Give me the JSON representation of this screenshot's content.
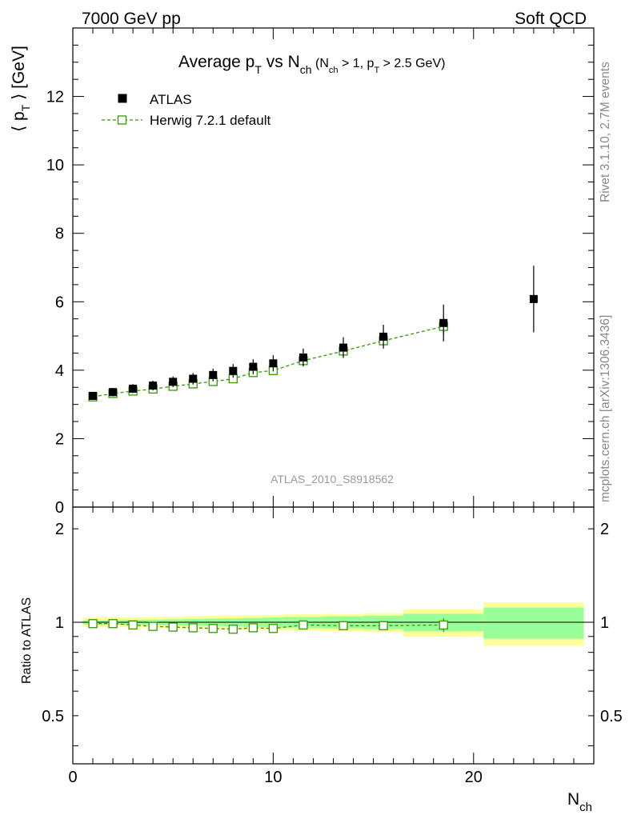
{
  "chart_data": {
    "type": "scatter",
    "top_left_label": "7000 GeV pp",
    "top_right_label": "Soft QCD",
    "title": {
      "prefix": "Average p",
      "sub1": "T",
      "mid": " vs N",
      "sub2": "ch",
      "cuts_open": " (N",
      "cuts_sub1": "ch",
      "cuts_mid": " > 1, p",
      "cuts_sub2": "T",
      "cuts_close": " > 2.5 GeV)"
    },
    "ylabel": {
      "open": "⟨ p",
      "sub": "T",
      "close": " ⟩  [GeV]"
    },
    "xlabel": {
      "main": "N",
      "sub": "ch"
    },
    "ratio_ylabel": "Ratio to ATLAS",
    "analysis_tag": "ATLAS_2010_S8918562",
    "side_label_rivet": "Rivet 3.1.10,  2.7M events",
    "side_label_mcplots": "mcplots.cern.ch [arXiv:1306.3436]",
    "xlim": [
      0,
      26
    ],
    "ylim": [
      0,
      14
    ],
    "ratio_ylim": [
      0.35,
      2.35
    ],
    "x_ticks": [
      "0",
      "10",
      "20"
    ],
    "y_ticks": [
      "0",
      "2",
      "4",
      "6",
      "8",
      "10",
      "12"
    ],
    "ratio_ticks": [
      "0.5",
      "1",
      "2"
    ],
    "colors": {
      "mc": "#339900",
      "band_inner": "#99ff99",
      "band_outer": "#ffff99"
    },
    "legend": [
      {
        "name": "ATLAS",
        "marker": "filled-square"
      },
      {
        "name": "Herwig 7.2.1 default",
        "marker": "open-square-dashed"
      }
    ],
    "series": [
      {
        "name": "ATLAS",
        "x": [
          1,
          2,
          3,
          4,
          5,
          6,
          7,
          8,
          9,
          10,
          11.5,
          13.5,
          15.5,
          18.5,
          23
        ],
        "xlow": [
          0.5,
          1.5,
          2.5,
          3.5,
          4.5,
          5.5,
          6.5,
          7.5,
          8.5,
          9.5,
          10.5,
          12.5,
          14.5,
          16.5,
          20.5
        ],
        "xhigh": [
          1.5,
          2.5,
          3.5,
          4.5,
          5.5,
          6.5,
          7.5,
          8.5,
          9.5,
          10.5,
          12.5,
          14.5,
          16.5,
          20.5,
          25.5
        ],
        "y": [
          3.25,
          3.36,
          3.46,
          3.55,
          3.66,
          3.75,
          3.86,
          3.98,
          4.1,
          4.2,
          4.37,
          4.66,
          4.98,
          5.38,
          6.08
        ],
        "rel_err_stat": [
          0.015,
          0.016,
          0.018,
          0.02,
          0.022,
          0.025,
          0.028,
          0.03,
          0.033,
          0.036,
          0.04,
          0.045,
          0.05,
          0.065,
          0.115
        ],
        "rel_err_total": [
          0.035,
          0.036,
          0.038,
          0.04,
          0.043,
          0.045,
          0.048,
          0.05,
          0.053,
          0.056,
          0.06,
          0.065,
          0.07,
          0.1,
          0.16
        ]
      },
      {
        "name": "Herwig 7.2.1 default",
        "x": [
          1,
          2,
          3,
          4,
          5,
          6,
          7,
          8,
          9,
          10,
          11.5,
          13.5,
          15.5,
          18.5
        ],
        "y": [
          3.22,
          3.32,
          3.39,
          3.45,
          3.53,
          3.6,
          3.67,
          3.75,
          3.93,
          3.99,
          4.28,
          4.56,
          4.86,
          5.28
        ],
        "yerr": [
          0.03,
          0.03,
          0.03,
          0.03,
          0.03,
          0.04,
          0.04,
          0.04,
          0.05,
          0.05,
          0.06,
          0.08,
          0.1,
          0.25
        ],
        "ratio": [
          0.99,
          0.99,
          0.98,
          0.97,
          0.965,
          0.96,
          0.955,
          0.95,
          0.96,
          0.955,
          0.98,
          0.975,
          0.975,
          0.98
        ],
        "ratio_err": [
          0.01,
          0.01,
          0.01,
          0.01,
          0.01,
          0.01,
          0.01,
          0.01,
          0.015,
          0.015,
          0.015,
          0.02,
          0.02,
          0.05
        ]
      }
    ]
  }
}
